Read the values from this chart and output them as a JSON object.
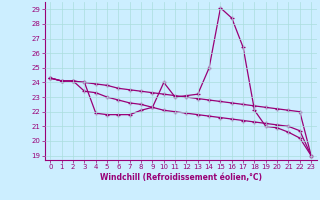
{
  "xlabel": "Windchill (Refroidissement éolien,°C)",
  "background_color": "#cceeff",
  "line_color": "#990077",
  "grid_color": "#aadddd",
  "xlim": [
    -0.5,
    23.5
  ],
  "ylim": [
    18.7,
    29.5
  ],
  "yticks": [
    19,
    20,
    21,
    22,
    23,
    24,
    25,
    26,
    27,
    28,
    29
  ],
  "xticks": [
    0,
    1,
    2,
    3,
    4,
    5,
    6,
    7,
    8,
    9,
    10,
    11,
    12,
    13,
    14,
    15,
    16,
    17,
    18,
    19,
    20,
    21,
    22,
    23
  ],
  "line1_x": [
    0,
    1,
    2,
    3,
    4,
    5,
    6,
    7,
    8,
    9,
    10,
    11,
    12,
    13,
    14,
    15,
    16,
    17,
    18,
    19,
    20,
    21,
    22,
    23
  ],
  "line1_y": [
    24.3,
    24.1,
    24.1,
    24.0,
    21.9,
    21.8,
    21.8,
    21.8,
    22.1,
    22.3,
    24.0,
    23.0,
    23.1,
    23.2,
    25.0,
    29.1,
    28.4,
    26.4,
    22.1,
    21.0,
    20.9,
    20.6,
    20.2,
    19.0
  ],
  "line2_x": [
    0,
    1,
    2,
    3,
    4,
    5,
    6,
    7,
    8,
    9,
    10,
    11,
    12,
    13,
    14,
    15,
    16,
    17,
    18,
    19,
    20,
    21,
    22,
    23
  ],
  "line2_y": [
    24.3,
    24.1,
    24.1,
    23.4,
    23.3,
    23.0,
    22.8,
    22.6,
    22.5,
    22.3,
    22.1,
    22.0,
    21.9,
    21.8,
    21.7,
    21.6,
    21.5,
    21.4,
    21.3,
    21.2,
    21.1,
    21.0,
    20.7,
    19.0
  ],
  "line3_x": [
    0,
    1,
    2,
    3,
    4,
    5,
    6,
    7,
    8,
    9,
    10,
    11,
    12,
    13,
    14,
    15,
    16,
    17,
    18,
    19,
    20,
    21,
    22,
    23
  ],
  "line3_y": [
    24.3,
    24.1,
    24.1,
    24.0,
    23.9,
    23.8,
    23.6,
    23.5,
    23.4,
    23.3,
    23.2,
    23.1,
    23.0,
    22.9,
    22.8,
    22.7,
    22.6,
    22.5,
    22.4,
    22.3,
    22.2,
    22.1,
    22.0,
    19.0
  ]
}
